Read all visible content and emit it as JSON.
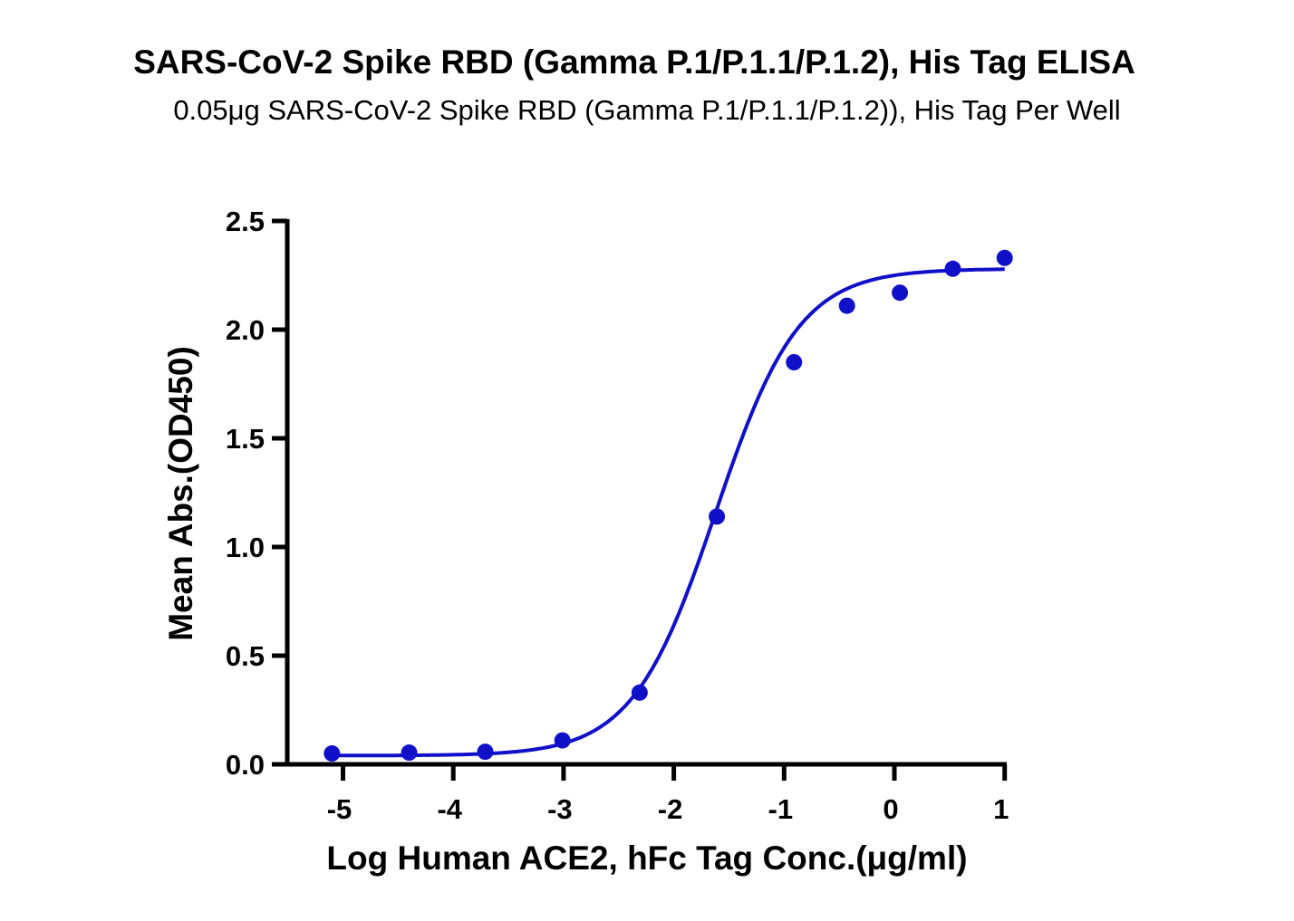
{
  "chart_data": {
    "type": "scatter",
    "title": "SARS-CoV-2 Spike RBD (Gamma P.1/P.1.1/P.1.2), His Tag ELISA",
    "subtitle": "0.05μg SARS-CoV-2 Spike RBD (Gamma P.1/P.1.1/P.1.2)), His Tag Per Well",
    "xlabel": "Log Human ACE2, hFc Tag Conc.(μg/ml)",
    "ylabel": "Mean Abs.(OD450)",
    "xlim": [
      -5.5,
      1
    ],
    "ylim": [
      0,
      2.5
    ],
    "x_ticks": [
      "-5",
      "-4",
      "-3",
      "-2",
      "-1",
      "0",
      "1"
    ],
    "y_ticks": [
      "0.0",
      "0.5",
      "1.0",
      "1.5",
      "2.0",
      "2.5"
    ],
    "grid": false,
    "colors": {
      "series": "#1010c8",
      "axis": "#000000"
    },
    "series": [
      {
        "x": [
          -5.1,
          -4.4,
          -3.71,
          -3.01,
          -2.31,
          -1.61,
          -0.91,
          -0.43,
          0.05,
          0.53,
          1.0
        ],
        "y": [
          0.05,
          0.054,
          0.058,
          0.11,
          0.33,
          1.14,
          1.85,
          2.11,
          2.17,
          2.28,
          2.33
        ],
        "fit": "four-parameter logistic curve"
      }
    ]
  }
}
